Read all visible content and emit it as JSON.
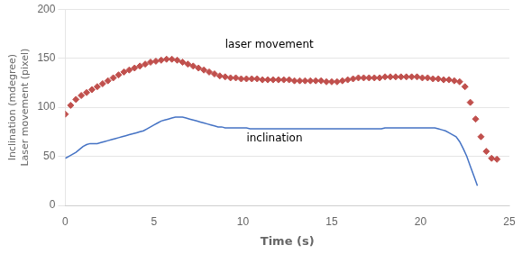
{
  "chart_data": {
    "type": "scatter",
    "xlabel": "Time (s)",
    "ylabel": "Inclination (mdegree)\nLaser movement (pixel)",
    "xlim": [
      0,
      25
    ],
    "ylim": [
      0,
      200
    ],
    "xticks": [
      0,
      5,
      10,
      15,
      20,
      25
    ],
    "yticks": [
      0,
      50,
      100,
      150,
      200
    ],
    "grid": "y",
    "background_color": "#ffffff",
    "series": [
      {
        "name": "laser movement",
        "color": "#c0504d",
        "marker": "diamond",
        "line_style": "none",
        "x": [
          0.0,
          0.3,
          0.6,
          0.9,
          1.2,
          1.5,
          1.8,
          2.1,
          2.4,
          2.7,
          3.0,
          3.3,
          3.6,
          3.9,
          4.2,
          4.5,
          4.8,
          5.1,
          5.4,
          5.7,
          6.0,
          6.3,
          6.6,
          6.9,
          7.2,
          7.5,
          7.8,
          8.1,
          8.4,
          8.7,
          9.0,
          9.3,
          9.6,
          9.9,
          10.2,
          10.5,
          10.8,
          11.1,
          11.4,
          11.7,
          12.0,
          12.3,
          12.6,
          12.9,
          13.2,
          13.5,
          13.8,
          14.1,
          14.4,
          14.7,
          15.0,
          15.3,
          15.6,
          15.9,
          16.2,
          16.5,
          16.8,
          17.1,
          17.4,
          17.7,
          18.0,
          18.3,
          18.6,
          18.9,
          19.2,
          19.5,
          19.8,
          20.1,
          20.4,
          20.7,
          21.0,
          21.3,
          21.6,
          21.9,
          22.2,
          22.5,
          22.8,
          23.1,
          23.4,
          23.7,
          24.0,
          24.3
        ],
        "values": [
          93,
          102,
          108,
          112,
          115,
          118,
          121,
          124,
          127,
          130,
          133,
          136,
          138,
          140,
          142,
          144,
          146,
          147,
          148,
          149,
          149,
          148,
          146,
          144,
          142,
          140,
          138,
          136,
          134,
          132,
          131,
          130,
          130,
          129,
          129,
          129,
          129,
          128,
          128,
          128,
          128,
          128,
          128,
          127,
          127,
          127,
          127,
          127,
          127,
          126,
          126,
          126,
          127,
          128,
          129,
          130,
          130,
          130,
          130,
          130,
          131,
          131,
          131,
          131,
          131,
          131,
          131,
          130,
          130,
          129,
          129,
          128,
          128,
          127,
          126,
          121,
          105,
          88,
          70,
          55,
          48,
          47
        ]
      },
      {
        "name": "inclination",
        "color": "#4472c4",
        "marker": "none",
        "line_style": "solid",
        "x": [
          0.0,
          0.2,
          0.4,
          0.6,
          0.8,
          1.0,
          1.2,
          1.4,
          1.6,
          1.8,
          2.0,
          2.2,
          2.4,
          2.6,
          2.8,
          3.0,
          3.2,
          3.4,
          3.6,
          3.8,
          4.0,
          4.2,
          4.4,
          4.6,
          4.8,
          5.0,
          5.2,
          5.4,
          5.6,
          5.8,
          6.0,
          6.2,
          6.4,
          6.6,
          6.8,
          7.0,
          7.2,
          7.4,
          7.6,
          7.8,
          8.0,
          8.2,
          8.4,
          8.6,
          8.8,
          9.0,
          9.2,
          9.4,
          9.6,
          9.8,
          10.0,
          10.2,
          10.4,
          10.6,
          10.8,
          11.0,
          11.2,
          11.4,
          11.6,
          11.8,
          12.0,
          12.2,
          12.4,
          12.6,
          12.8,
          13.0,
          13.2,
          13.4,
          13.6,
          13.8,
          14.0,
          14.2,
          14.4,
          14.6,
          14.8,
          15.0,
          15.2,
          15.4,
          15.6,
          15.8,
          16.0,
          16.2,
          16.4,
          16.6,
          16.8,
          17.0,
          17.2,
          17.4,
          17.6,
          17.8,
          18.0,
          18.2,
          18.4,
          18.6,
          18.8,
          19.0,
          19.2,
          19.4,
          19.6,
          19.8,
          20.0,
          20.2,
          20.4,
          20.6,
          20.8,
          21.0,
          21.2,
          21.4,
          21.6,
          21.8,
          22.0,
          22.2,
          22.4,
          22.6,
          22.8,
          23.0,
          23.2
        ],
        "values": [
          48,
          50,
          52,
          54,
          57,
          60,
          62,
          63,
          63,
          63,
          64,
          65,
          66,
          67,
          68,
          69,
          70,
          71,
          72,
          73,
          74,
          75,
          76,
          78,
          80,
          82,
          84,
          86,
          87,
          88,
          89,
          90,
          90,
          90,
          89,
          88,
          87,
          86,
          85,
          84,
          83,
          82,
          81,
          80,
          80,
          79,
          79,
          79,
          79,
          79,
          79,
          79,
          78,
          78,
          78,
          78,
          78,
          78,
          78,
          78,
          78,
          78,
          78,
          78,
          78,
          78,
          78,
          78,
          78,
          78,
          78,
          78,
          78,
          78,
          78,
          78,
          78,
          78,
          78,
          78,
          78,
          78,
          78,
          78,
          78,
          78,
          78,
          78,
          78,
          78,
          79,
          79,
          79,
          79,
          79,
          79,
          79,
          79,
          79,
          79,
          79,
          79,
          79,
          79,
          79,
          78,
          77,
          76,
          74,
          72,
          70,
          65,
          58,
          50,
          40,
          30,
          20
        ]
      }
    ],
    "annotations": [
      {
        "text": "laser movement",
        "x": 9.0,
        "y": 158
      },
      {
        "text": "inclination",
        "x": 10.2,
        "y": 63
      }
    ]
  }
}
